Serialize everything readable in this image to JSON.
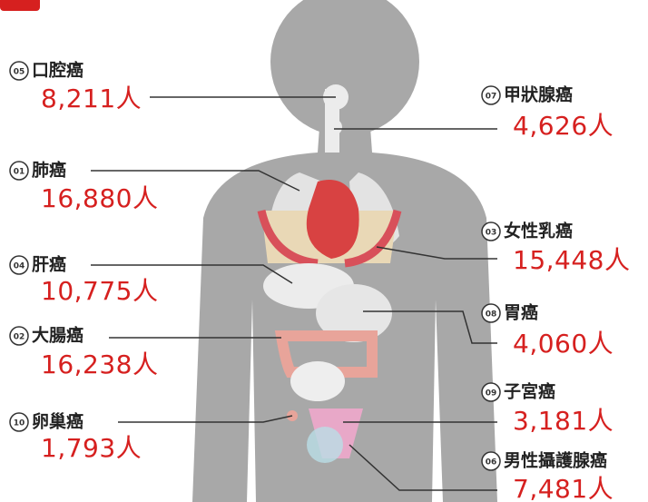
{
  "items": [
    {
      "rank": "05",
      "name": "口腔癌",
      "count": "8,211人"
    },
    {
      "rank": "01",
      "name": "肺癌",
      "count": "16,880人"
    },
    {
      "rank": "04",
      "name": "肝癌",
      "count": "10,775人"
    },
    {
      "rank": "02",
      "name": "大腸癌",
      "count": "16,238人"
    },
    {
      "rank": "10",
      "name": "卵巢癌",
      "count": "1,793人"
    },
    {
      "rank": "07",
      "name": "甲狀腺癌",
      "count": "4,626人"
    },
    {
      "rank": "03",
      "name": "女性乳癌",
      "count": "15,448人"
    },
    {
      "rank": "08",
      "name": "胃癌",
      "count": "4,060人"
    },
    {
      "rank": "09",
      "name": "子宮癌",
      "count": "3,181人"
    },
    {
      "rank": "06",
      "name": "男性攝護腺癌",
      "count": "7,481人"
    }
  ]
}
